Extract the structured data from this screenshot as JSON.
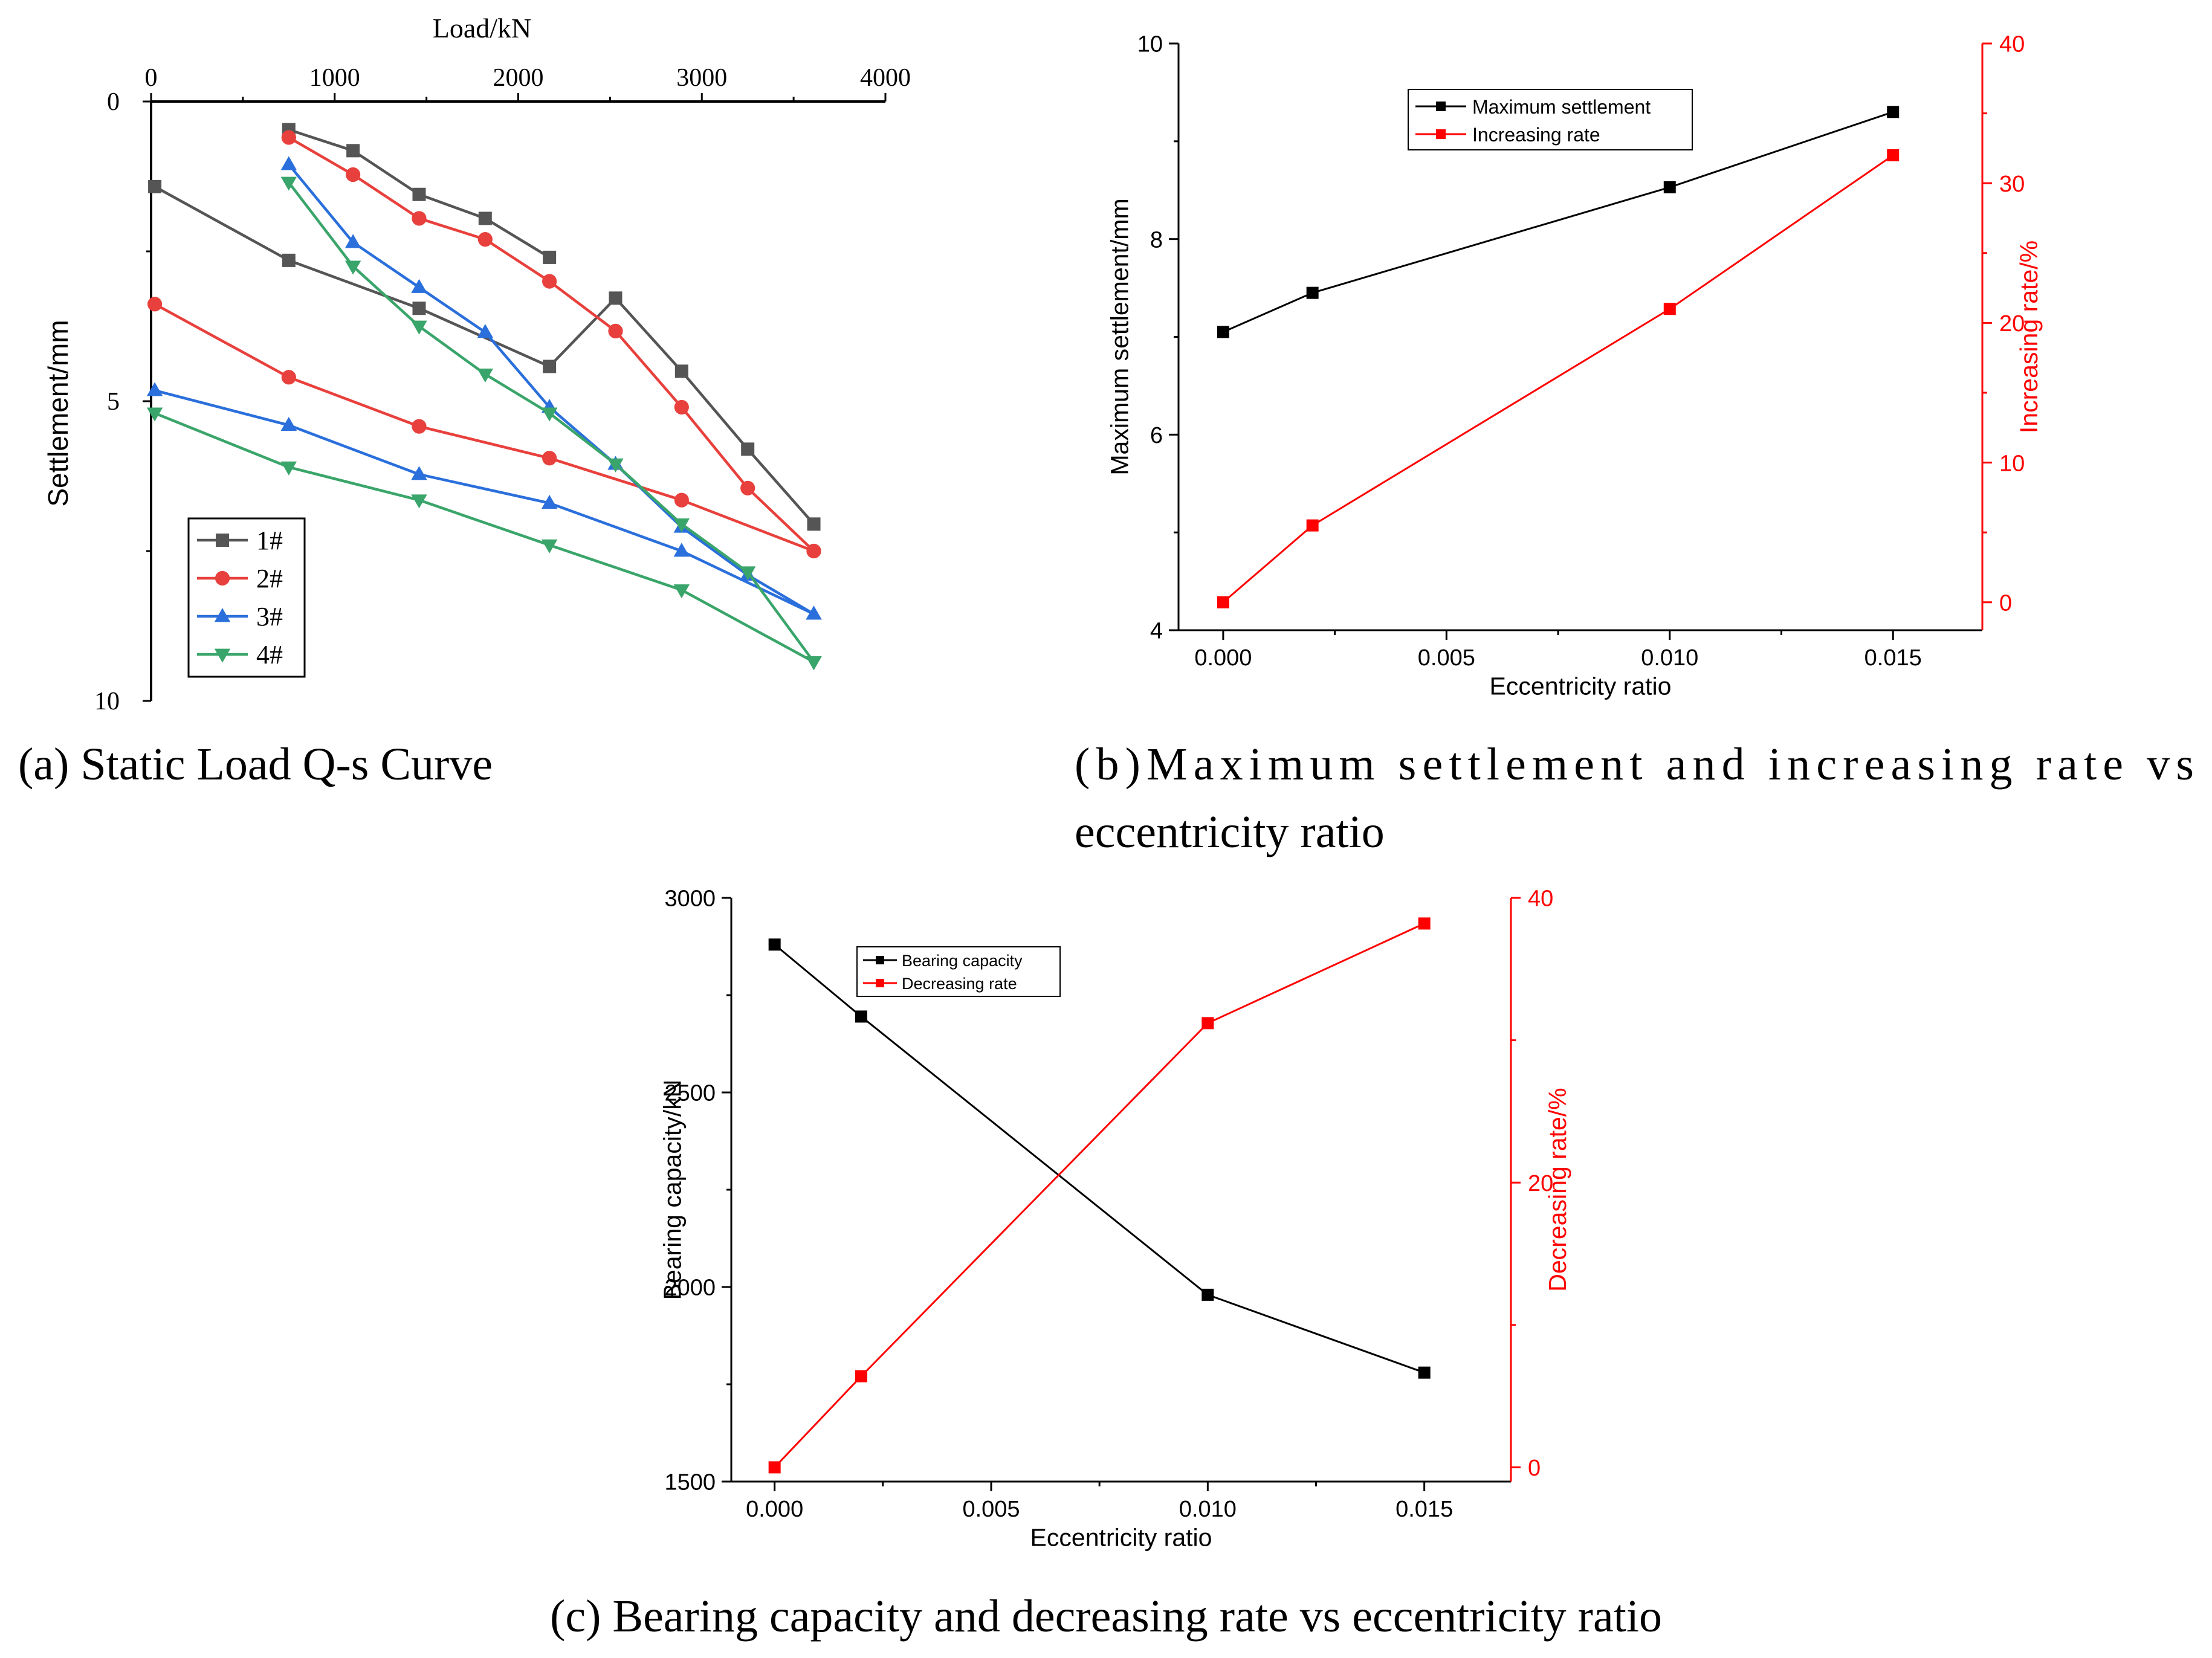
{
  "figure": {
    "captions": {
      "a": "(a) Static Load Q-s Curve",
      "b_line1": "(b)Maximum settlement and increasing rate vs",
      "b_line2": "eccentricity ratio",
      "c": "(c) Bearing capacity and decreasing rate vs eccentricity ratio"
    }
  },
  "colors": {
    "s1": "#555555",
    "s2": "#e8403c",
    "s3": "#2a6fdb",
    "s4": "#3aa56a",
    "black": "#000000",
    "red": "#ff0000"
  },
  "chart_data": [
    {
      "id": "a",
      "type": "line",
      "title": "",
      "xlabel": "Load/kN",
      "ylabel": "Settlement/mm",
      "xlim": [
        0,
        4000
      ],
      "ylim": [
        0,
        10
      ],
      "y_inverted": true,
      "x_axis_position": "top",
      "xticks": [
        0,
        1000,
        2000,
        3000,
        4000
      ],
      "xtick_labels": [
        "0",
        "1000",
        "2000",
        "3000",
        "4000"
      ],
      "yticks": [
        0,
        5,
        10
      ],
      "ytick_labels": [
        "0",
        "5",
        "10"
      ],
      "grid": false,
      "legend_position": "bottom-left",
      "series": [
        {
          "name": "1#",
          "marker": "square",
          "color_key": "s1",
          "x": [
            20,
            750,
            1460,
            2170,
            2530,
            2890,
            3250,
            3610
          ],
          "y": [
            1.42,
            2.65,
            3.45,
            4.42,
            3.28,
            4.5,
            5.8,
            7.05
          ],
          "x_upper": [
            750,
            1100,
            1460,
            1820,
            2170
          ],
          "y_upper": [
            0.47,
            0.82,
            1.55,
            1.95,
            2.6
          ]
        },
        {
          "name": "2#",
          "marker": "circle",
          "color_key": "s2",
          "x": [
            20,
            750,
            1460,
            2170,
            2890,
            3610
          ],
          "y": [
            3.38,
            4.6,
            5.42,
            5.95,
            6.65,
            7.5
          ],
          "x_upper": [
            750,
            1100,
            1460,
            1820,
            2170,
            2530,
            2890,
            3250,
            3610
          ],
          "y_upper": [
            0.6,
            1.22,
            1.95,
            2.3,
            3.0,
            3.83,
            5.1,
            6.45,
            7.5
          ]
        },
        {
          "name": "3#",
          "marker": "triangle-up",
          "color_key": "s3",
          "x": [
            20,
            750,
            1460,
            2170,
            2890,
            3610
          ],
          "y": [
            4.82,
            5.4,
            6.22,
            6.7,
            7.5,
            8.55
          ],
          "x_upper": [
            750,
            1100,
            1460,
            1820,
            2170,
            2530,
            2890,
            3250,
            3610
          ],
          "y_upper": [
            1.05,
            2.35,
            3.1,
            3.85,
            5.1,
            6.05,
            7.1,
            7.9,
            8.55
          ]
        },
        {
          "name": "4#",
          "marker": "triangle-down",
          "color_key": "s4",
          "x": [
            20,
            750,
            1460,
            2170,
            2890,
            3610
          ],
          "y": [
            5.2,
            6.1,
            6.65,
            7.4,
            8.15,
            9.35
          ],
          "x_upper": [
            750,
            1100,
            1460,
            1820,
            2170,
            2530,
            2890,
            3250,
            3610
          ],
          "y_upper": [
            1.35,
            2.75,
            3.75,
            4.55,
            5.2,
            6.05,
            7.05,
            7.85,
            9.35
          ]
        }
      ]
    },
    {
      "id": "b",
      "type": "line",
      "title": "",
      "xlabel": "Eccentricity ratio",
      "ylabel": "Maximum settlement/mm",
      "y2label": "Increasing rate/%",
      "xlim": [
        -0.001,
        0.017
      ],
      "ylim": [
        4,
        10
      ],
      "y2lim": [
        -2,
        40
      ],
      "xticks": [
        0,
        0.005,
        0.01,
        0.015
      ],
      "xtick_labels": [
        "0.000",
        "0.005",
        "0.010",
        "0.015"
      ],
      "yticks": [
        4,
        6,
        8,
        10
      ],
      "ytick_labels": [
        "4",
        "6",
        "8",
        "10"
      ],
      "y2ticks": [
        0,
        10,
        20,
        30,
        40
      ],
      "y2tick_labels": [
        "0",
        "10",
        "20",
        "30",
        "40"
      ],
      "grid": false,
      "legend_position": "top-center",
      "series": [
        {
          "name": "Maximum settlement",
          "axis": "left",
          "color_key": "black",
          "x": [
            0,
            0.002,
            0.01,
            0.015
          ],
          "y": [
            7.05,
            7.45,
            8.53,
            9.3
          ]
        },
        {
          "name": "Increasing rate",
          "axis": "right",
          "color_key": "red",
          "x": [
            0,
            0.002,
            0.01,
            0.015
          ],
          "y": [
            0,
            5.5,
            21,
            32
          ]
        }
      ]
    },
    {
      "id": "c",
      "type": "line",
      "title": "",
      "xlabel": "Eccentricity ratio",
      "ylabel": "Bearing capacity/kN",
      "y2label": "Decreasing rate/%",
      "xlim": [
        -0.001,
        0.017
      ],
      "ylim": [
        1500,
        3000
      ],
      "y2lim": [
        -1,
        40
      ],
      "xticks": [
        0,
        0.005,
        0.01,
        0.015
      ],
      "xtick_labels": [
        "0.000",
        "0.005",
        "0.010",
        "0.015"
      ],
      "yticks": [
        1500,
        2000,
        2500,
        3000
      ],
      "ytick_labels": [
        "1500",
        "2000",
        "2500",
        "3000"
      ],
      "y2ticks": [
        0,
        20,
        40
      ],
      "y2tick_labels": [
        "0",
        "20",
        "40"
      ],
      "grid": false,
      "legend_position": "top-left",
      "series": [
        {
          "name": "Bearing capacity",
          "axis": "left",
          "color_key": "black",
          "x": [
            0,
            0.002,
            0.01,
            0.015
          ],
          "y": [
            2880,
            2695,
            1980,
            1780
          ]
        },
        {
          "name": "Decreasing rate",
          "axis": "right",
          "color_key": "red",
          "x": [
            0,
            0.002,
            0.01,
            0.015
          ],
          "y": [
            0,
            6.4,
            31.2,
            38.2
          ]
        }
      ]
    }
  ]
}
